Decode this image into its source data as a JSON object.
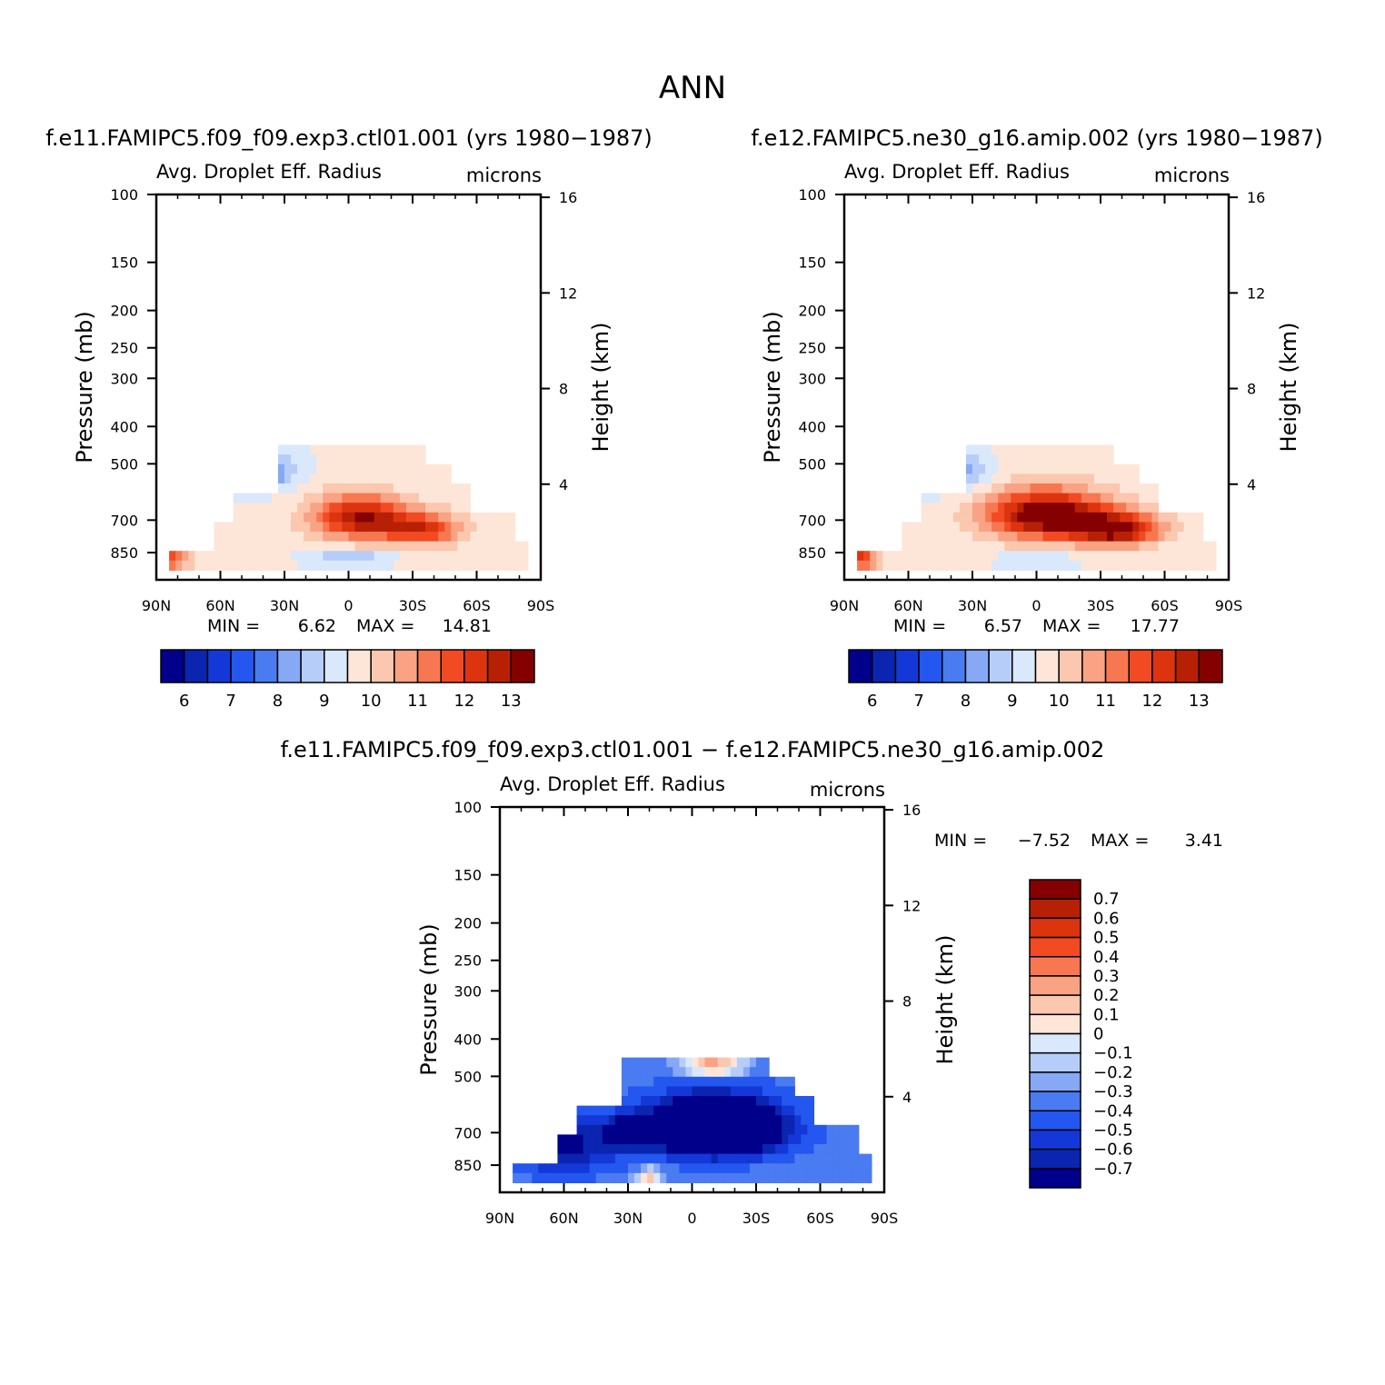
{
  "figure": {
    "title": "ANN",
    "palette_abs": [
      "#00008b",
      "#0b25b0",
      "#1438d8",
      "#2457f0",
      "#4a7bf0",
      "#86a8f5",
      "#b6cdfa",
      "#d9e8fb",
      "#fde6d8",
      "#fbc7ae",
      "#f9a284",
      "#f77850",
      "#f24a22",
      "#dd3410",
      "#b82006",
      "#850000"
    ],
    "palette_diff": [
      "#00008b",
      "#0b25b0",
      "#1438d8",
      "#2457f0",
      "#4a7bf0",
      "#86a8f5",
      "#b6cdfa",
      "#d9e8fb",
      "#fde6d8",
      "#fbc7ae",
      "#f9a284",
      "#f77850",
      "#f24a22",
      "#dd3410",
      "#b82006",
      "#850000"
    ]
  },
  "chart_data": [
    {
      "type": "heatmap",
      "case": "f.e11.FAMIPC5.f09_f09.exp3.ctl01.001 (yrs 1980-1987)",
      "title": "f.e11.FAMIPC5.f09_f09.exp3.ctl01.001 (yrs 1980−1987)",
      "field": "Avg. Droplet Eff. Radius",
      "units": "microns",
      "xlabel": "",
      "ylabel": "Pressure (mb)",
      "y2label": "Height (km)",
      "x_ticks": [
        "90N",
        "60N",
        "30N",
        "0",
        "30S",
        "60S",
        "90S"
      ],
      "y_ticks": [
        "100",
        "150",
        "200",
        "250",
        "300",
        "400",
        "500",
        "700",
        "850"
      ],
      "y_tick_values": [
        100,
        150,
        200,
        250,
        300,
        400,
        500,
        700,
        850
      ],
      "y2_ticks": [
        "16",
        "12",
        "8",
        "4"
      ],
      "y2_tick_values": [
        16,
        12,
        8,
        4
      ],
      "xlim": [
        90,
        -90
      ],
      "ylim": [
        100,
        1000
      ],
      "stats": {
        "min_label": "MIN =",
        "min": "6.62",
        "max_label": "MAX =",
        "max": "14.81"
      },
      "colorbar": {
        "orientation": "horizontal",
        "labels": [
          "6",
          "7",
          "8",
          "9",
          "10",
          "11",
          "12",
          "13"
        ],
        "levels": [
          6,
          6.5,
          7,
          7.5,
          8,
          8.5,
          9,
          9.5,
          10,
          10.5,
          11,
          11.5,
          12,
          12.5,
          13
        ]
      },
      "field_model": {
        "lat_max": [
          84,
          62,
          62,
          55,
          55,
          33,
          33,
          -37,
          -37,
          -48,
          -48,
          -56,
          -56,
          -78,
          -78,
          -85
        ],
        "lat_max_p": [
          850,
          850,
          700,
          700,
          600,
          600,
          450,
          450,
          500,
          500,
          550,
          550,
          650,
          650,
          800,
          800
        ],
        "features": [
          {
            "lat": -5,
            "p": 690,
            "amp": 3.4,
            "wlat": 22,
            "wp": 90
          },
          {
            "lat": -35,
            "p": 740,
            "amp": 2.6,
            "wlat": 18,
            "wp": 70
          },
          {
            "lat": 85,
            "p": 880,
            "amp": 2.4,
            "wlat": 10,
            "wp": 60
          },
          {
            "lat": 45,
            "p": 520,
            "amp": -2.4,
            "wlat": 18,
            "wp": 60
          },
          {
            "lat": 0,
            "p": 880,
            "amp": -1.2,
            "wlat": 18,
            "wp": 40
          }
        ],
        "base": 9.6
      }
    },
    {
      "type": "heatmap",
      "case": "f.e12.FAMIPC5.ne30_g16.amip.002 (yrs 1980-1987)",
      "title": "f.e12.FAMIPC5.ne30_g16.amip.002 (yrs 1980−1987)",
      "field": "Avg. Droplet Eff. Radius",
      "units": "microns",
      "xlabel": "",
      "ylabel": "Pressure (mb)",
      "y2label": "Height (km)",
      "x_ticks": [
        "90N",
        "60N",
        "30N",
        "0",
        "30S",
        "60S",
        "90S"
      ],
      "y_ticks": [
        "100",
        "150",
        "200",
        "250",
        "300",
        "400",
        "500",
        "700",
        "850"
      ],
      "y_tick_values": [
        100,
        150,
        200,
        250,
        300,
        400,
        500,
        700,
        850
      ],
      "y2_ticks": [
        "16",
        "12",
        "8",
        "4"
      ],
      "y2_tick_values": [
        16,
        12,
        8,
        4
      ],
      "xlim": [
        90,
        -90
      ],
      "ylim": [
        100,
        1000
      ],
      "stats": {
        "min_label": "MIN =",
        "min": "6.57",
        "max_label": "MAX =",
        "max": "17.77"
      },
      "colorbar": {
        "orientation": "horizontal",
        "labels": [
          "6",
          "7",
          "8",
          "9",
          "10",
          "11",
          "12",
          "13"
        ],
        "levels": [
          6,
          6.5,
          7,
          7.5,
          8,
          8.5,
          9,
          9.5,
          10,
          10.5,
          11,
          11.5,
          12,
          12.5,
          13
        ]
      },
      "field_model": {
        "lat_max": [
          84,
          62,
          62,
          55,
          55,
          33,
          33,
          -37,
          -37,
          -48,
          -48,
          -56,
          -56,
          -78,
          -78,
          -85
        ],
        "lat_max_p": [
          850,
          850,
          700,
          700,
          600,
          600,
          450,
          450,
          500,
          500,
          550,
          550,
          650,
          650,
          800,
          800
        ],
        "features": [
          {
            "lat": -5,
            "p": 680,
            "amp": 4.2,
            "wlat": 28,
            "wp": 100
          },
          {
            "lat": -38,
            "p": 740,
            "amp": 3.6,
            "wlat": 20,
            "wp": 70
          },
          {
            "lat": 85,
            "p": 880,
            "amp": 2.8,
            "wlat": 10,
            "wp": 60
          },
          {
            "lat": 45,
            "p": 520,
            "amp": -2.3,
            "wlat": 18,
            "wp": 60
          },
          {
            "lat": 0,
            "p": 890,
            "amp": -1.1,
            "wlat": 16,
            "wp": 35
          }
        ],
        "base": 9.6
      }
    },
    {
      "type": "heatmap",
      "case": "f.e11.FAMIPC5.f09_f09.exp3.ctl01.001 - f.e12.FAMIPC5.ne30_g16.amip.002",
      "title": "f.e11.FAMIPC5.f09_f09.exp3.ctl01.001 − f.e12.FAMIPC5.ne30_g16.amip.002",
      "field": "Avg. Droplet Eff. Radius",
      "units": "microns",
      "xlabel": "",
      "ylabel": "Pressure (mb)",
      "y2label": "Height (km)",
      "x_ticks": [
        "90N",
        "60N",
        "30N",
        "0",
        "30S",
        "60S",
        "90S"
      ],
      "y_ticks": [
        "100",
        "150",
        "200",
        "250",
        "300",
        "400",
        "500",
        "700",
        "850"
      ],
      "y_tick_values": [
        100,
        150,
        200,
        250,
        300,
        400,
        500,
        700,
        850
      ],
      "y2_ticks": [
        "16",
        "12",
        "8",
        "4"
      ],
      "y2_tick_values": [
        16,
        12,
        8,
        4
      ],
      "xlim": [
        90,
        -90
      ],
      "ylim": [
        100,
        1000
      ],
      "stats": {
        "min_label": "MIN =",
        "min": "−7.52",
        "max_label": "MAX =",
        "max": "3.41"
      },
      "colorbar": {
        "orientation": "vertical",
        "labels": [
          "0.7",
          "0.6",
          "0.5",
          "0.4",
          "0.3",
          "0.2",
          "0.1",
          "0",
          "−0.1",
          "−0.2",
          "−0.3",
          "−0.4",
          "−0.5",
          "−0.6",
          "−0.7"
        ],
        "levels": [
          0.7,
          0.6,
          0.5,
          0.4,
          0.3,
          0.2,
          0.1,
          0,
          -0.1,
          -0.2,
          -0.3,
          -0.4,
          -0.5,
          -0.6,
          -0.7
        ]
      },
      "field_model": {
        "lat_max": [
          84,
          62,
          62,
          55,
          55,
          33,
          33,
          -37,
          -37,
          -48,
          -48,
          -56,
          -56,
          -78,
          -78,
          -85
        ],
        "lat_max_p": [
          850,
          850,
          700,
          700,
          600,
          600,
          450,
          450,
          500,
          500,
          550,
          550,
          650,
          650,
          800,
          800
        ],
        "features": [
          {
            "lat": -10,
            "p": 680,
            "amp": -1.2,
            "wlat": 30,
            "wp": 110
          },
          {
            "lat": 30,
            "p": 700,
            "amp": -0.5,
            "wlat": 10,
            "wp": 60
          },
          {
            "lat": 60,
            "p": 760,
            "amp": -0.4,
            "wlat": 25,
            "wp": 120
          },
          {
            "lat": 20,
            "p": 900,
            "amp": 0.7,
            "wlat": 6,
            "wp": 30
          },
          {
            "lat": -10,
            "p": 470,
            "amp": 0.7,
            "wlat": 14,
            "wp": 25
          }
        ],
        "base": -0.35
      }
    }
  ]
}
